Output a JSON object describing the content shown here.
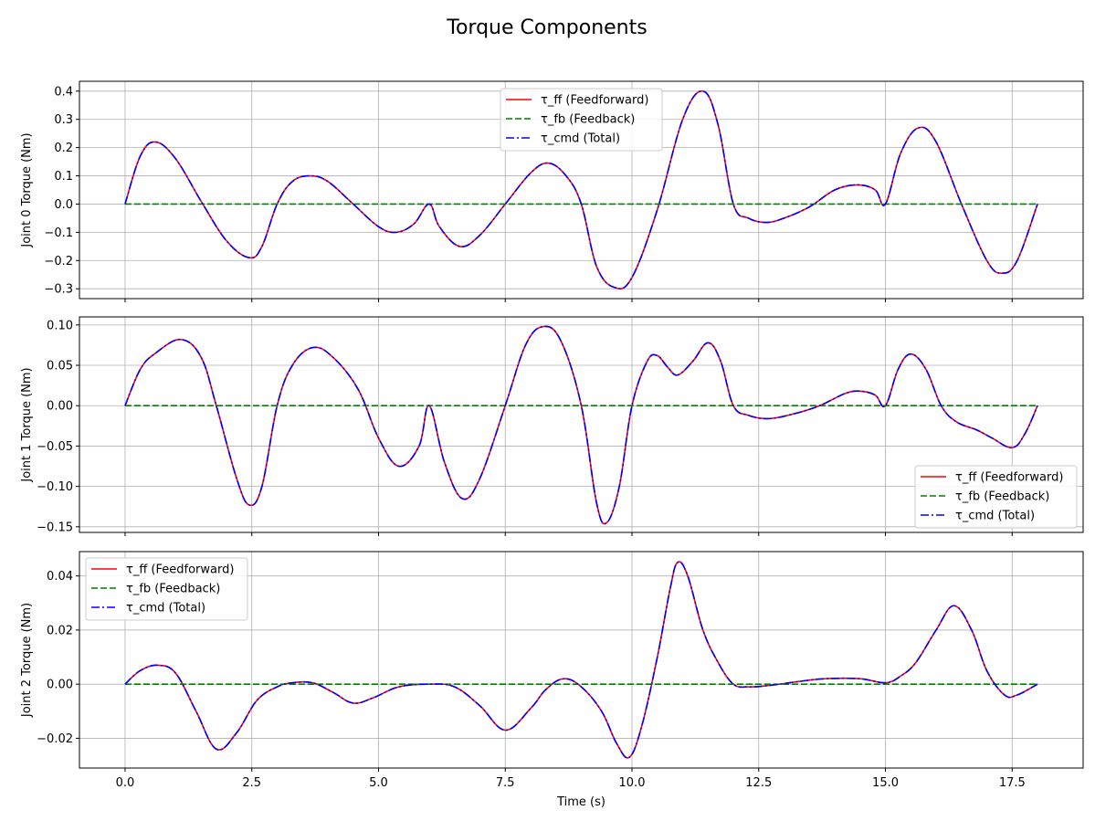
{
  "title": "Torque Components",
  "chart_data": [
    {
      "type": "line",
      "xlabel": "",
      "ylabel": "Joint 0 Torque (Nm)",
      "xlim": [
        -0.9,
        18.9
      ],
      "ylim": [
        -0.335,
        0.435
      ],
      "xticks": [
        0.0,
        2.5,
        5.0,
        7.5,
        10.0,
        12.5,
        15.0,
        17.5
      ],
      "xtick_labels": [
        "0.0",
        "2.5",
        "5.0",
        "7.5",
        "10.0",
        "12.5",
        "15.0",
        "17.5"
      ],
      "yticks": [
        -0.3,
        -0.2,
        -0.1,
        0.0,
        0.1,
        0.2,
        0.3,
        0.4
      ],
      "ytick_labels": [
        "−0.3",
        "−0.2",
        "−0.1",
        "0.0",
        "0.1",
        "0.2",
        "0.3",
        "0.4"
      ],
      "grid": true,
      "legend_position": "top-center",
      "x": [
        0,
        0.3,
        0.6,
        1.0,
        1.5,
        2.0,
        2.45,
        2.7,
        3.0,
        3.3,
        3.65,
        4.0,
        4.5,
        5.0,
        5.35,
        5.7,
        6.0,
        6.2,
        6.6,
        7.0,
        7.5,
        8.0,
        8.35,
        8.7,
        9.0,
        9.3,
        9.65,
        10.0,
        10.5,
        11.0,
        11.4,
        11.7,
        12.0,
        12.3,
        12.65,
        13.0,
        13.5,
        14.0,
        14.45,
        14.8,
        15.0,
        15.3,
        15.65,
        16.0,
        16.5,
        17.0,
        17.3,
        17.6,
        18.0
      ],
      "series": [
        {
          "name": "τ_ff (Feedforward)",
          "color": "#ff0000",
          "dash": "solid",
          "values": [
            0.0,
            0.17,
            0.22,
            0.16,
            0.01,
            -0.13,
            -0.19,
            -0.15,
            0.0,
            0.08,
            0.1,
            0.08,
            0.0,
            -0.08,
            -0.1,
            -0.07,
            0.0,
            -0.08,
            -0.15,
            -0.11,
            0.0,
            0.11,
            0.145,
            0.1,
            0.0,
            -0.22,
            -0.295,
            -0.26,
            -0.02,
            0.3,
            0.4,
            0.28,
            0.0,
            -0.05,
            -0.065,
            -0.05,
            -0.01,
            0.05,
            0.068,
            0.05,
            0.0,
            0.18,
            0.27,
            0.22,
            0.0,
            -0.2,
            -0.245,
            -0.2,
            0.0
          ]
        },
        {
          "name": "τ_fb (Feedback)",
          "color": "#008000",
          "dash": "dashed",
          "values": [
            0,
            0,
            0,
            0,
            0,
            0,
            0,
            0,
            0,
            0,
            0,
            0,
            0,
            0,
            0,
            0,
            0,
            0,
            0,
            0,
            0,
            0,
            0,
            0,
            0,
            0,
            0,
            0,
            0,
            0,
            0,
            0,
            0,
            0,
            0,
            0,
            0,
            0,
            0,
            0,
            0,
            0,
            0,
            0,
            0,
            0,
            0,
            0,
            0
          ]
        },
        {
          "name": "τ_cmd (Total)",
          "color": "#0000ff",
          "dash": "dashdot",
          "values": [
            0.0,
            0.17,
            0.22,
            0.16,
            0.01,
            -0.13,
            -0.19,
            -0.15,
            0.0,
            0.08,
            0.1,
            0.08,
            0.0,
            -0.08,
            -0.1,
            -0.07,
            0.0,
            -0.08,
            -0.15,
            -0.11,
            0.0,
            0.11,
            0.145,
            0.1,
            0.0,
            -0.22,
            -0.295,
            -0.26,
            -0.02,
            0.3,
            0.4,
            0.28,
            0.0,
            -0.05,
            -0.065,
            -0.05,
            -0.01,
            0.05,
            0.068,
            0.05,
            0.0,
            0.18,
            0.27,
            0.22,
            0.0,
            -0.2,
            -0.245,
            -0.2,
            0.0
          ]
        }
      ]
    },
    {
      "type": "line",
      "xlabel": "",
      "ylabel": "Joint 1 Torque (Nm)",
      "xlim": [
        -0.9,
        18.9
      ],
      "ylim": [
        -0.157,
        0.11
      ],
      "xticks": [
        0.0,
        2.5,
        5.0,
        7.5,
        10.0,
        12.5,
        15.0,
        17.5
      ],
      "xtick_labels": [
        "0.0",
        "2.5",
        "5.0",
        "7.5",
        "10.0",
        "12.5",
        "15.0",
        "17.5"
      ],
      "yticks": [
        -0.15,
        -0.1,
        -0.05,
        0.0,
        0.05,
        0.1
      ],
      "ytick_labels": [
        "−0.15",
        "−0.10",
        "−0.05",
        "0.00",
        "0.05",
        "0.10"
      ],
      "grid": true,
      "legend_position": "lower-right",
      "x": [
        0,
        0.3,
        0.6,
        1.1,
        1.5,
        1.8,
        2.2,
        2.45,
        2.7,
        3.0,
        3.3,
        3.7,
        4.1,
        4.6,
        5.0,
        5.4,
        5.8,
        6.0,
        6.3,
        6.65,
        7.0,
        7.5,
        7.9,
        8.25,
        8.6,
        9.0,
        9.3,
        9.5,
        9.75,
        10.0,
        10.3,
        10.5,
        10.7,
        10.9,
        11.2,
        11.5,
        11.75,
        12.0,
        12.3,
        12.7,
        13.2,
        13.7,
        14.2,
        14.5,
        14.8,
        15.0,
        15.25,
        15.5,
        15.8,
        16.1,
        16.4,
        16.8,
        17.1,
        17.5,
        17.75,
        18.0
      ],
      "series": [
        {
          "name": "τ_ff (Feedforward)",
          "color": "#ff0000",
          "dash": "solid",
          "values": [
            0.0,
            0.045,
            0.065,
            0.082,
            0.06,
            0.0,
            -0.09,
            -0.123,
            -0.1,
            0.0,
            0.05,
            0.072,
            0.06,
            0.02,
            -0.04,
            -0.075,
            -0.05,
            0.0,
            -0.07,
            -0.115,
            -0.09,
            0.0,
            0.075,
            0.098,
            0.08,
            0.0,
            -0.12,
            -0.145,
            -0.1,
            0.0,
            0.055,
            0.062,
            0.048,
            0.038,
            0.055,
            0.078,
            0.055,
            0.0,
            -0.012,
            -0.016,
            -0.01,
            0.0,
            0.015,
            0.018,
            0.013,
            0.0,
            0.045,
            0.064,
            0.045,
            0.0,
            -0.02,
            -0.03,
            -0.04,
            -0.052,
            -0.035,
            0.0
          ]
        },
        {
          "name": "τ_fb (Feedback)",
          "color": "#008000",
          "dash": "dashed",
          "values": [
            0,
            0,
            0,
            0,
            0,
            0,
            0,
            0,
            0,
            0,
            0,
            0,
            0,
            0,
            0,
            0,
            0,
            0,
            0,
            0,
            0,
            0,
            0,
            0,
            0,
            0,
            0,
            0,
            0,
            0,
            0,
            0,
            0,
            0,
            0,
            0,
            0,
            0,
            0,
            0,
            0,
            0,
            0,
            0,
            0,
            0,
            0,
            0,
            0,
            0,
            0,
            0,
            0,
            0,
            0,
            0
          ]
        },
        {
          "name": "τ_cmd (Total)",
          "color": "#0000ff",
          "dash": "dashdot",
          "values": [
            0.0,
            0.045,
            0.065,
            0.082,
            0.06,
            0.0,
            -0.09,
            -0.123,
            -0.1,
            0.0,
            0.05,
            0.072,
            0.06,
            0.02,
            -0.04,
            -0.075,
            -0.05,
            0.0,
            -0.07,
            -0.115,
            -0.09,
            0.0,
            0.075,
            0.098,
            0.08,
            0.0,
            -0.12,
            -0.145,
            -0.1,
            0.0,
            0.055,
            0.062,
            0.048,
            0.038,
            0.055,
            0.078,
            0.055,
            0.0,
            -0.012,
            -0.016,
            -0.01,
            0.0,
            0.015,
            0.018,
            0.013,
            0.0,
            0.045,
            0.064,
            0.045,
            0.0,
            -0.02,
            -0.03,
            -0.04,
            -0.052,
            -0.035,
            0.0
          ]
        }
      ]
    },
    {
      "type": "line",
      "xlabel": "Time (s)",
      "ylabel": "Joint 2 Torque (Nm)",
      "xlim": [
        -0.9,
        18.9
      ],
      "ylim": [
        -0.031,
        0.049
      ],
      "xticks": [
        0.0,
        2.5,
        5.0,
        7.5,
        10.0,
        12.5,
        15.0,
        17.5
      ],
      "xtick_labels": [
        "0.0",
        "2.5",
        "5.0",
        "7.5",
        "10.0",
        "12.5",
        "15.0",
        "17.5"
      ],
      "yticks": [
        -0.02,
        0.0,
        0.02,
        0.04
      ],
      "ytick_labels": [
        "−0.02",
        "0.00",
        "0.02",
        "0.04"
      ],
      "grid": true,
      "legend_position": "upper-left",
      "x": [
        0,
        0.3,
        0.65,
        1.0,
        1.4,
        1.8,
        2.2,
        2.6,
        3.0,
        3.3,
        3.7,
        4.1,
        4.5,
        4.9,
        5.4,
        6.0,
        6.5,
        7.0,
        7.5,
        8.0,
        8.3,
        8.65,
        9.0,
        9.4,
        9.7,
        9.95,
        10.2,
        10.5,
        10.75,
        10.9,
        11.1,
        11.4,
        11.7,
        12.0,
        12.3,
        12.7,
        13.3,
        13.8,
        14.5,
        15.0,
        15.3,
        15.6,
        16.0,
        16.35,
        16.7,
        17.0,
        17.35,
        17.6,
        18.0
      ],
      "series": [
        {
          "name": "τ_ff (Feedforward)",
          "color": "#ff0000",
          "dash": "solid",
          "values": [
            0.0,
            0.005,
            0.007,
            0.004,
            -0.01,
            -0.024,
            -0.018,
            -0.006,
            -0.001,
            0.0005,
            0.0005,
            -0.003,
            -0.007,
            -0.005,
            -0.001,
            0.0,
            -0.001,
            -0.008,
            -0.017,
            -0.009,
            -0.002,
            0.002,
            -0.001,
            -0.01,
            -0.022,
            -0.027,
            -0.015,
            0.01,
            0.035,
            0.045,
            0.04,
            0.02,
            0.008,
            0.0,
            -0.001,
            -0.0005,
            0.001,
            0.002,
            0.002,
            0.0005,
            0.003,
            0.008,
            0.02,
            0.029,
            0.02,
            0.005,
            -0.004,
            -0.004,
            0.0
          ]
        },
        {
          "name": "τ_fb (Feedback)",
          "color": "#008000",
          "dash": "dashed",
          "values": [
            0,
            0,
            0,
            0,
            0,
            0,
            0,
            0,
            0,
            0,
            0,
            0,
            0,
            0,
            0,
            0,
            0,
            0,
            0,
            0,
            0,
            0,
            0,
            0,
            0,
            0,
            0,
            0,
            0,
            0,
            0,
            0,
            0,
            0,
            0,
            0,
            0,
            0,
            0,
            0,
            0,
            0,
            0,
            0,
            0,
            0,
            0,
            0,
            0
          ]
        },
        {
          "name": "τ_cmd (Total)",
          "color": "#0000ff",
          "dash": "dashdot",
          "values": [
            0.0,
            0.005,
            0.007,
            0.004,
            -0.01,
            -0.024,
            -0.018,
            -0.006,
            -0.001,
            0.0005,
            0.0005,
            -0.003,
            -0.007,
            -0.005,
            -0.001,
            0.0,
            -0.001,
            -0.008,
            -0.017,
            -0.009,
            -0.002,
            0.002,
            -0.001,
            -0.01,
            -0.022,
            -0.027,
            -0.015,
            0.01,
            0.035,
            0.045,
            0.04,
            0.02,
            0.008,
            0.0,
            -0.001,
            -0.0005,
            0.001,
            0.002,
            0.002,
            0.0005,
            0.003,
            0.008,
            0.02,
            0.029,
            0.02,
            0.005,
            -0.004,
            -0.004,
            0.0
          ]
        }
      ]
    }
  ]
}
